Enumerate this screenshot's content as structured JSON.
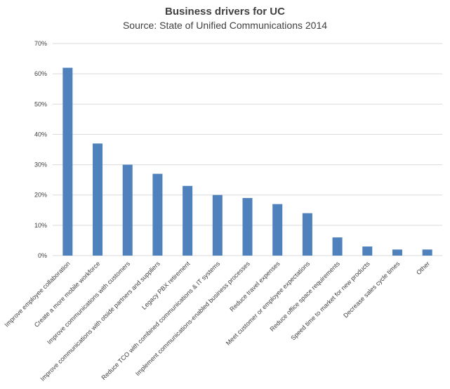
{
  "chart_data": {
    "type": "bar",
    "title": "Business drivers for UC",
    "subtitle": "Source: State of Unified Communications 2014",
    "xlabel": "",
    "ylabel": "",
    "ylim": [
      0,
      70
    ],
    "yticks": [
      "0%",
      "10%",
      "20%",
      "30%",
      "40%",
      "50%",
      "60%",
      "70%"
    ],
    "grid": true,
    "bar_color": "#4F81BD",
    "grid_color": "#D9D9D9",
    "categories": [
      "Improve employee collaboration",
      "Create a more mobile workforce",
      "Improve communications with customers",
      "Improve communications with otside partners and suppliers",
      "Legacy PBX retirement",
      "Reduce TCO with combined communications & IT systems",
      "Implement communications-enabled business processes",
      "Reduce travel expenses",
      "Meet customer or employee expectations",
      "Reduce office space requirements",
      "Speed time to market for new products",
      "Decrease sales cycle times",
      "Other"
    ],
    "values": [
      62,
      37,
      30,
      27,
      23,
      20,
      19,
      17,
      14,
      6,
      3,
      2,
      2
    ]
  }
}
